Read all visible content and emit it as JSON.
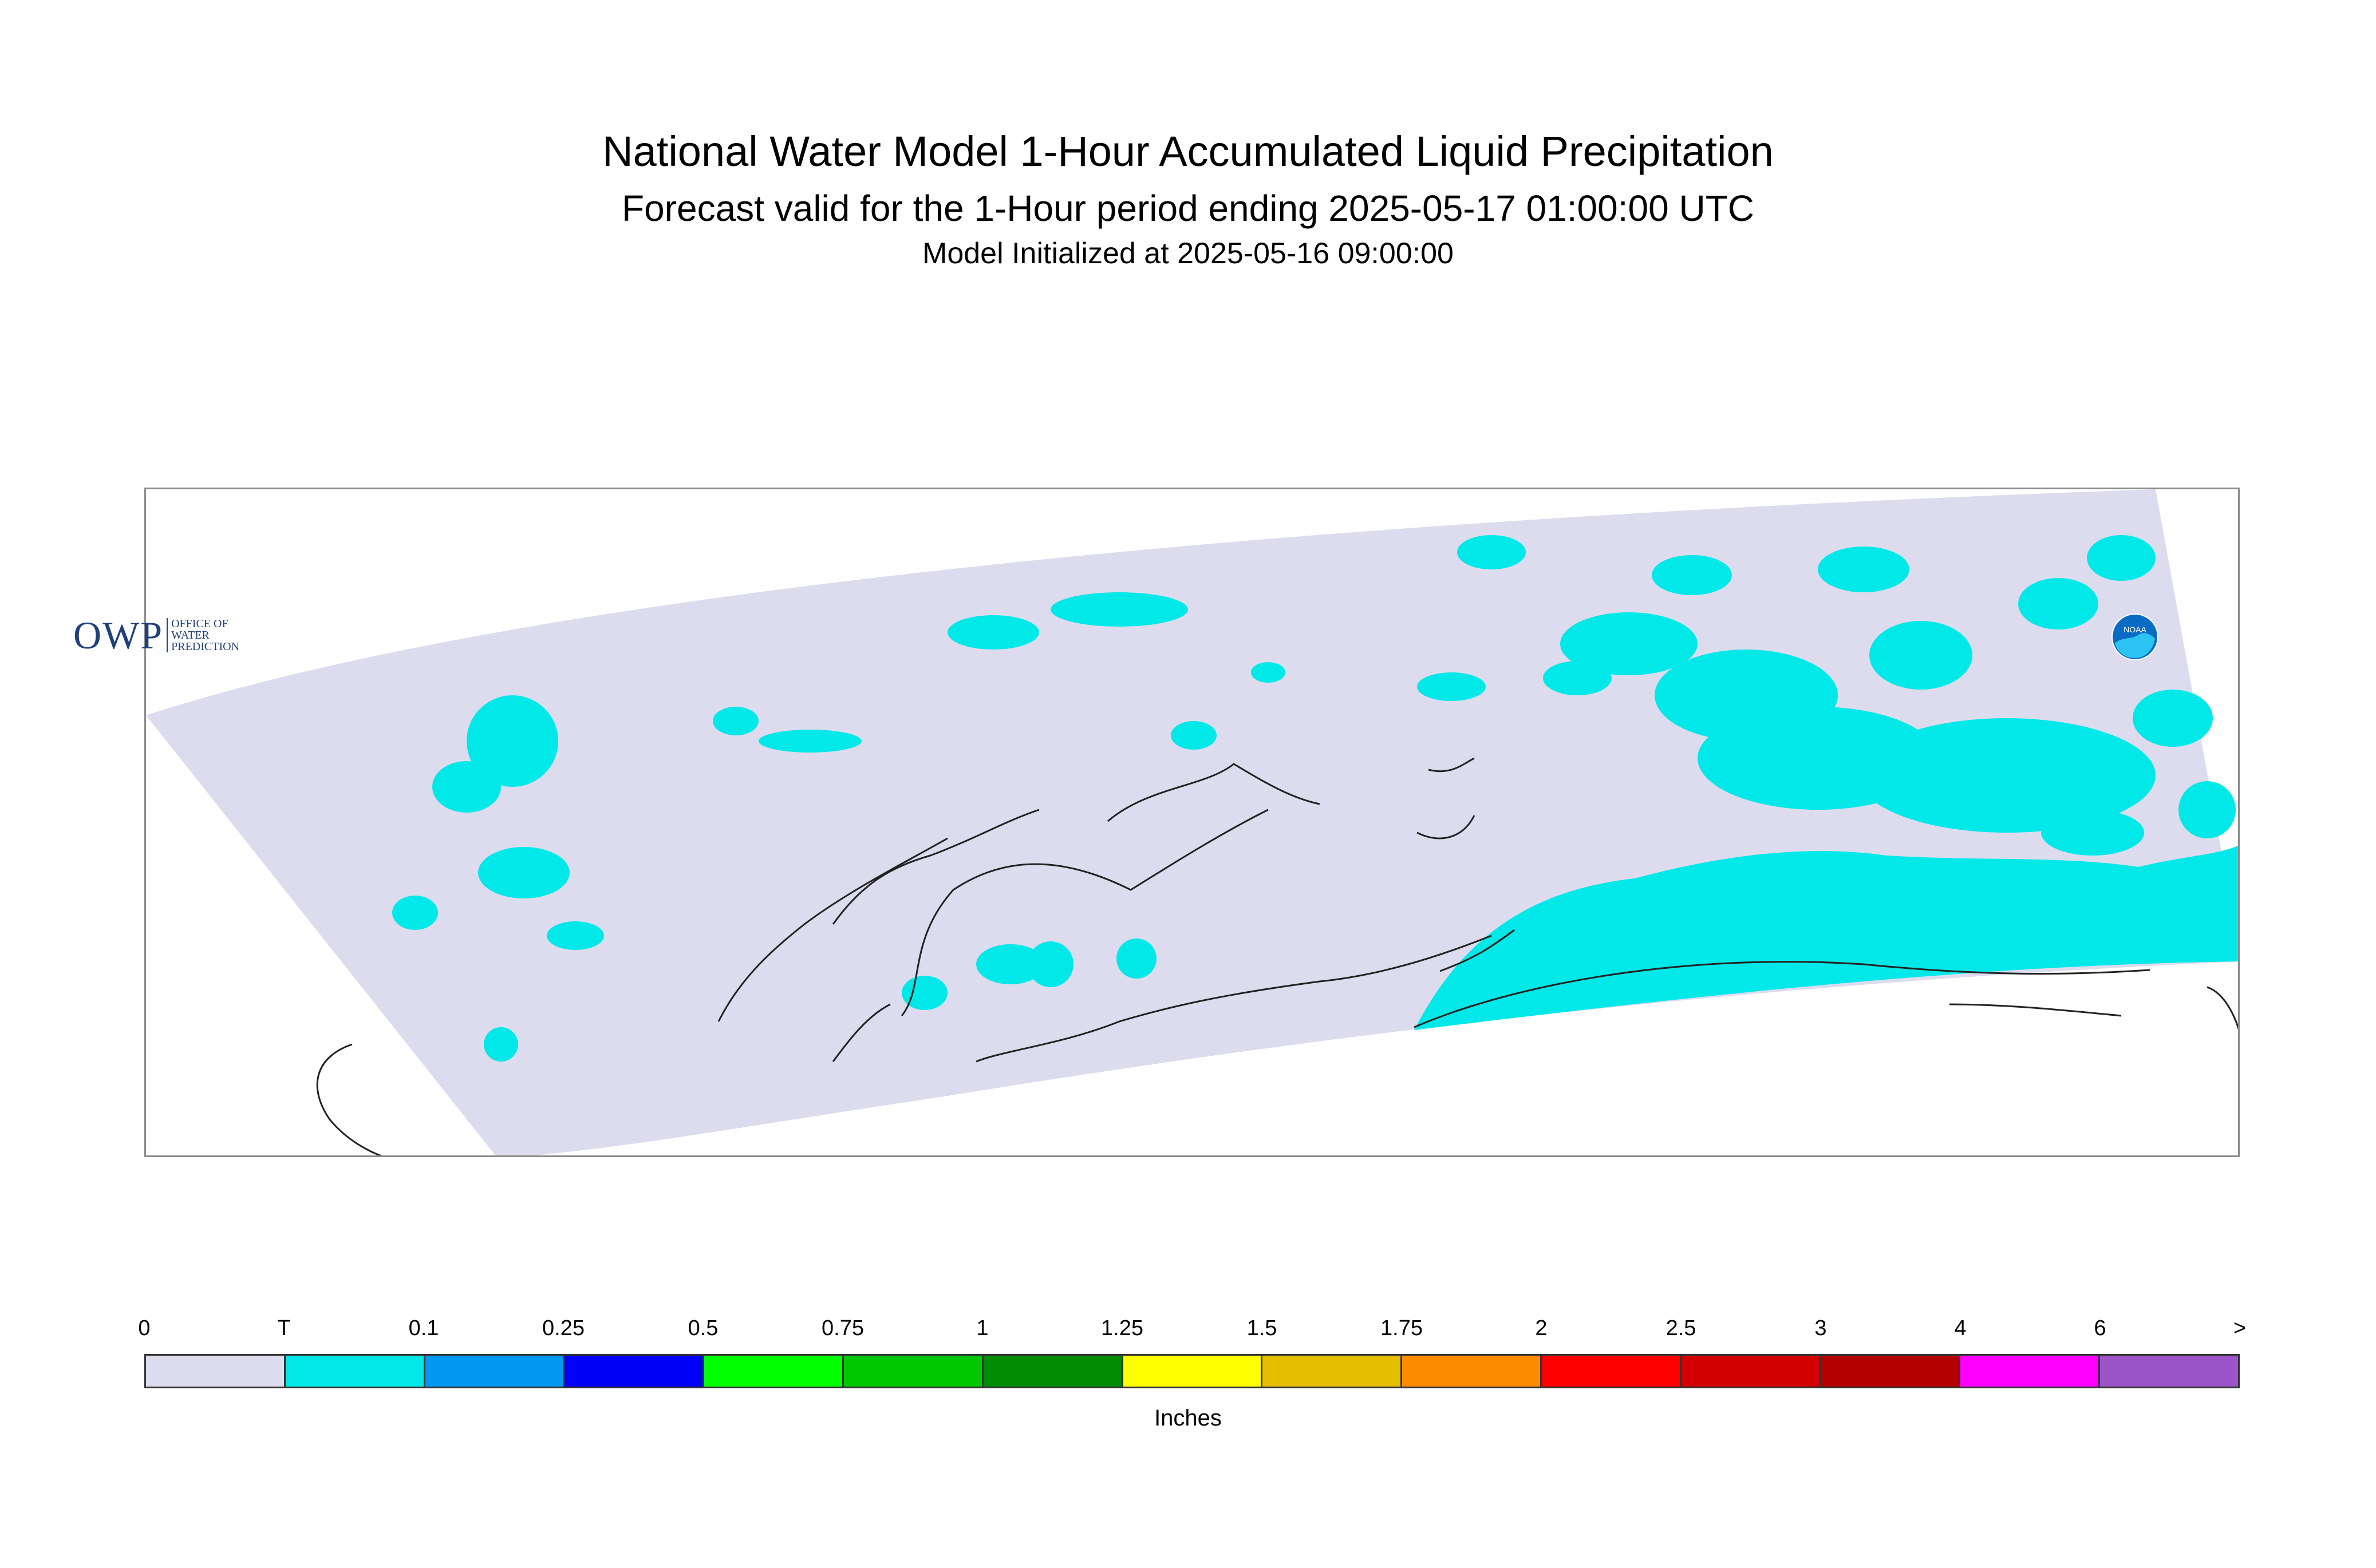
{
  "title": "National Water Model 1-Hour Accumulated Liquid Precipitation",
  "subtitle": "Forecast valid for the 1-Hour period ending 2025-05-17 01:00:00 UTC",
  "init_line": "Model Initialized at 2025-05-16 09:00:00",
  "logos": {
    "owp_mark": "OWP",
    "owp_text": [
      "OFFICE OF",
      "WATER",
      "PREDICTION"
    ],
    "noaa_text": "NOAA"
  },
  "colors": {
    "background_domain": "#dcdcee",
    "trace": "#00e8e8",
    "coast": "#222222"
  },
  "legend": {
    "units": "Inches",
    "ticks": [
      "0",
      "T",
      "0.1",
      "0.25",
      "0.5",
      "0.75",
      "1",
      "1.25",
      "1.5",
      "1.75",
      "2",
      "2.5",
      "3",
      "4",
      "6",
      ">"
    ],
    "swatches": [
      {
        "color": "#dcdcee"
      },
      {
        "color": "#00e8e8"
      },
      {
        "color": "#0098f0"
      },
      {
        "color": "#0000f8"
      },
      {
        "color": "#00ff00"
      },
      {
        "color": "#00c800"
      },
      {
        "color": "#008c00"
      },
      {
        "color": "#ffff00"
      },
      {
        "color": "#e6be00"
      },
      {
        "color": "#ff8c00"
      },
      {
        "color": "#ff0000"
      },
      {
        "color": "#d20000"
      },
      {
        "color": "#b40000"
      },
      {
        "color": "#ff00ff"
      },
      {
        "color": "#9b55c8"
      }
    ]
  }
}
